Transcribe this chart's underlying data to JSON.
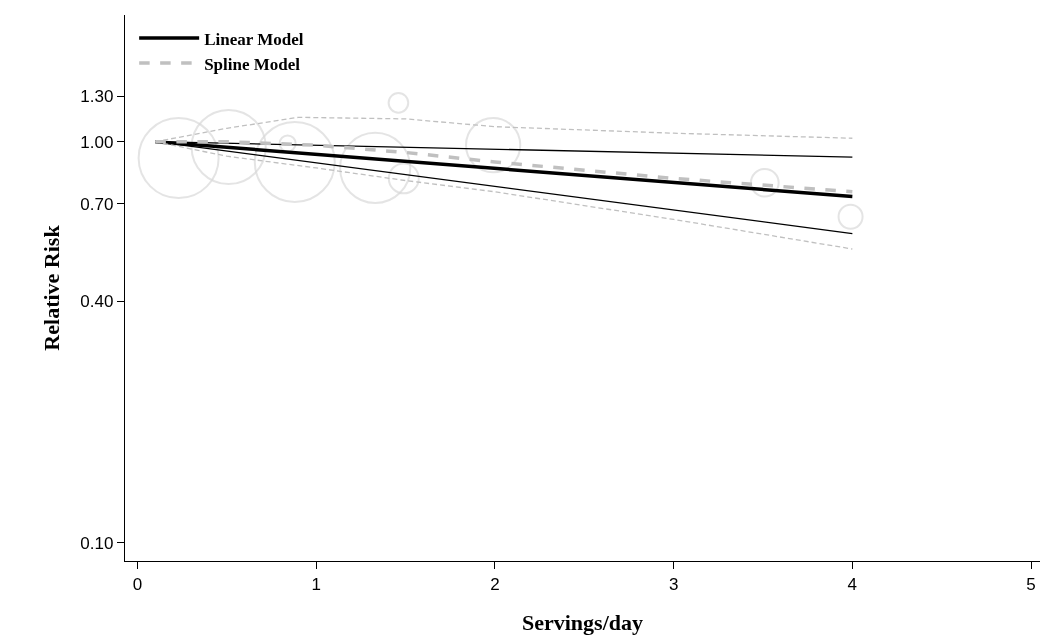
{
  "chart_data": {
    "type": "line",
    "xlabel": "Servings/day",
    "ylabel": "Relative Risk",
    "xlim": [
      -0.07,
      5.05
    ],
    "xticks": [
      0,
      1,
      2,
      3,
      4,
      5
    ],
    "ylim": [
      0.09,
      2.07
    ],
    "yticks": [
      {
        "value": 0.1,
        "label": "0.10"
      },
      {
        "value": 0.4,
        "label": "0.40"
      },
      {
        "value": 0.7,
        "label": "0.70"
      },
      {
        "value": 1.0,
        "label": "1.00"
      },
      {
        "value": 1.3,
        "label": "1.30"
      }
    ],
    "log": "y",
    "legend": "top left",
    "series": [
      {
        "type": "bubble",
        "color": "#d9d9d9",
        "x": [
          0.23,
          0.51,
          0.88,
          0.84,
          1.33,
          1.49,
          1.46,
          1.99,
          3.51,
          3.99
        ],
        "values": [
          0.91,
          0.97,
          0.89,
          0.99,
          0.86,
          0.81,
          1.25,
          0.98,
          0.79,
          0.65
        ],
        "sizes": [
          1,
          0.86,
          1,
          0.04,
          0.77,
          0.14,
          0.06,
          0.46,
          0.12,
          0.09
        ]
      },
      {
        "name": "Linear Model",
        "color": "#000000",
        "line_style": "solid",
        "x": [
          0.1,
          4
        ],
        "values": [
          1.0,
          0.73
        ]
      },
      {
        "color": "#000000",
        "line_style": "solid",
        "x": [
          0.1,
          4
        ],
        "values": [
          1.0,
          0.915
        ]
      },
      {
        "color": "#000000",
        "line_style": "solid",
        "x": [
          0.1,
          4
        ],
        "values": [
          1.0,
          0.59
        ]
      },
      {
        "name": "Spline Model",
        "color": "#c0c0c0",
        "line_style": "dashed",
        "x": [
          0.1,
          0.5,
          1,
          1.5,
          2,
          3,
          4
        ],
        "values": [
          1.0,
          1.0,
          0.98,
          0.94,
          0.89,
          0.81,
          0.75
        ]
      },
      {
        "color": "#c0c0c0",
        "line_style": "dashed",
        "x": [
          0.1,
          0.5,
          0.9,
          1.5,
          2,
          3,
          4
        ],
        "values": [
          1.0,
          1.08,
          1.15,
          1.14,
          1.09,
          1.05,
          1.02
        ]
      },
      {
        "color": "#c0c0c0",
        "line_style": "dashed",
        "x": [
          0.1,
          0.5,
          1,
          1.5,
          2,
          3,
          4
        ],
        "values": [
          1.0,
          0.92,
          0.86,
          0.8,
          0.75,
          0.64,
          0.54
        ]
      }
    ]
  }
}
